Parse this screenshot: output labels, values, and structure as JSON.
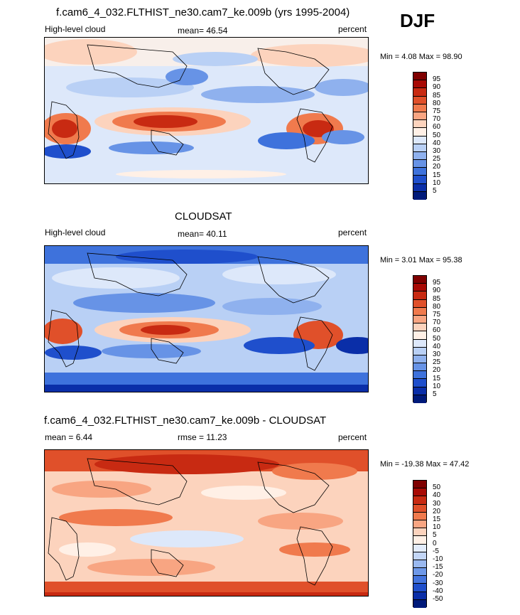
{
  "season": "DJF",
  "panels": [
    {
      "id": "model",
      "title": "f.cam6_4_032.FLTHIST_ne30.cam7_ke.009b (yrs 1995-2004)",
      "left_label": "High-level cloud",
      "center_label": "mean=  46.54",
      "right_label": "percent",
      "minmax": "Min =   4.08 Max =  98.90",
      "colorbar_labels": [
        "95",
        "90",
        "85",
        "80",
        "75",
        "70",
        "60",
        "50",
        "40",
        "30",
        "25",
        "20",
        "15",
        "10",
        "5"
      ],
      "colors": [
        "#7f0000",
        "#a80a05",
        "#c82a12",
        "#e0502a",
        "#f07a4d",
        "#f8a582",
        "#fcd3bd",
        "#fff0e6",
        "#dde8fa",
        "#b9d0f5",
        "#8fb1ee",
        "#6793e6",
        "#3e72dc",
        "#1f4fcc",
        "#0a2ea8",
        "#001a7a"
      ]
    },
    {
      "id": "obs",
      "title": "CLOUDSAT",
      "left_label": "High-level cloud",
      "center_label": "mean=  40.11",
      "right_label": "percent",
      "minmax": "Min =   3.01 Max =  95.38",
      "colorbar_labels": [
        "95",
        "90",
        "85",
        "80",
        "75",
        "70",
        "60",
        "50",
        "40",
        "30",
        "25",
        "20",
        "15",
        "10",
        "5"
      ],
      "colors": [
        "#7f0000",
        "#a80a05",
        "#c82a12",
        "#e0502a",
        "#f07a4d",
        "#f8a582",
        "#fcd3bd",
        "#fff0e6",
        "#dde8fa",
        "#b9d0f5",
        "#8fb1ee",
        "#6793e6",
        "#3e72dc",
        "#1f4fcc",
        "#0a2ea8",
        "#001a7a"
      ]
    },
    {
      "id": "diff",
      "title": "f.cam6_4_032.FLTHIST_ne30.cam7_ke.009b - CLOUDSAT",
      "left_label": "mean =   6.44",
      "center_label": "rmse =  11.23",
      "right_label": "percent",
      "minmax": "Min = -19.38 Max =  47.42",
      "colorbar_labels": [
        "50",
        "40",
        "30",
        "20",
        "15",
        "10",
        "5",
        "0",
        "-5",
        "-10",
        "-15",
        "-20",
        "-30",
        "-40",
        "-50"
      ],
      "colors": [
        "#7f0000",
        "#a80a05",
        "#c82a12",
        "#e0502a",
        "#f07a4d",
        "#f8a582",
        "#fcd3bd",
        "#fff0e6",
        "#e3ecfb",
        "#c3d6f6",
        "#9ab9f0",
        "#6e98e8",
        "#4474de",
        "#1f4fcc",
        "#0a2ea8",
        "#001a7a"
      ]
    }
  ]
}
